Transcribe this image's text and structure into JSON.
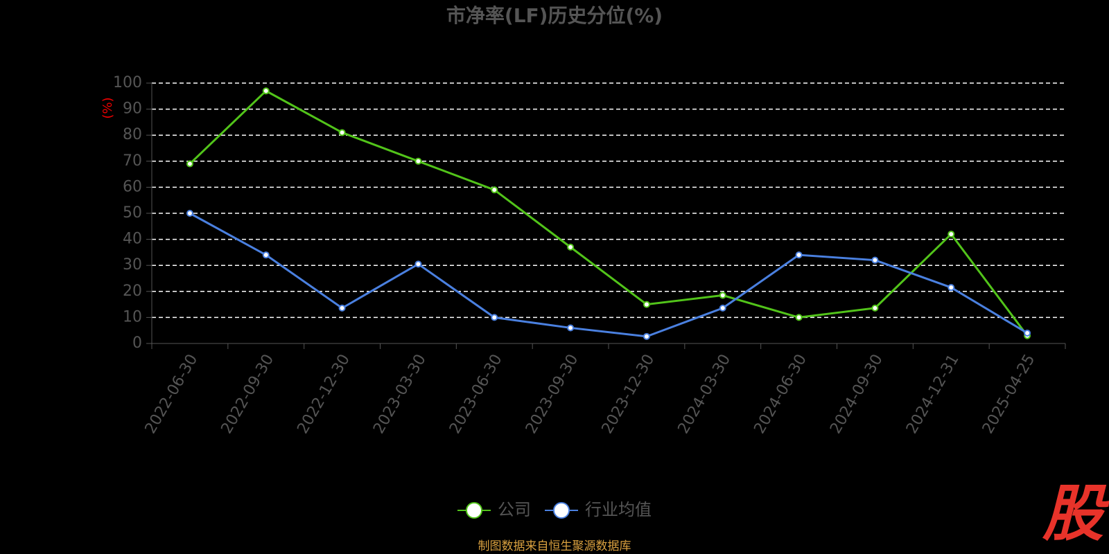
{
  "chart_data": {
    "type": "line",
    "title": "市净率(LF)历史分位(%)",
    "y_label": "(%)",
    "categories": [
      "2022-06-30",
      "2022-09-30",
      "2022-12-30",
      "2023-03-30",
      "2023-06-30",
      "2023-09-30",
      "2023-12-30",
      "2024-03-30",
      "2024-06-30",
      "2024-09-30",
      "2024-12-31",
      "2025-04-25"
    ],
    "series": [
      {
        "name": "公司",
        "color": "#52c41a",
        "values": [
          69,
          97,
          81,
          70,
          59,
          37,
          15,
          18.5,
          10,
          13.6,
          42,
          3
        ]
      },
      {
        "name": "行业均值",
        "color": "#4a80e0",
        "values": [
          50,
          34,
          13.6,
          30.5,
          10,
          6,
          2.7,
          13.6,
          34,
          32,
          21.5,
          4
        ]
      }
    ],
    "ylim": [
      0,
      100
    ],
    "yticks": [
      0,
      10,
      20,
      30,
      40,
      50,
      60,
      70,
      80,
      90,
      100
    ],
    "grid": true,
    "legend": "bottom",
    "source": "制图数据来自恒生聚源数据库",
    "logo": "股"
  }
}
